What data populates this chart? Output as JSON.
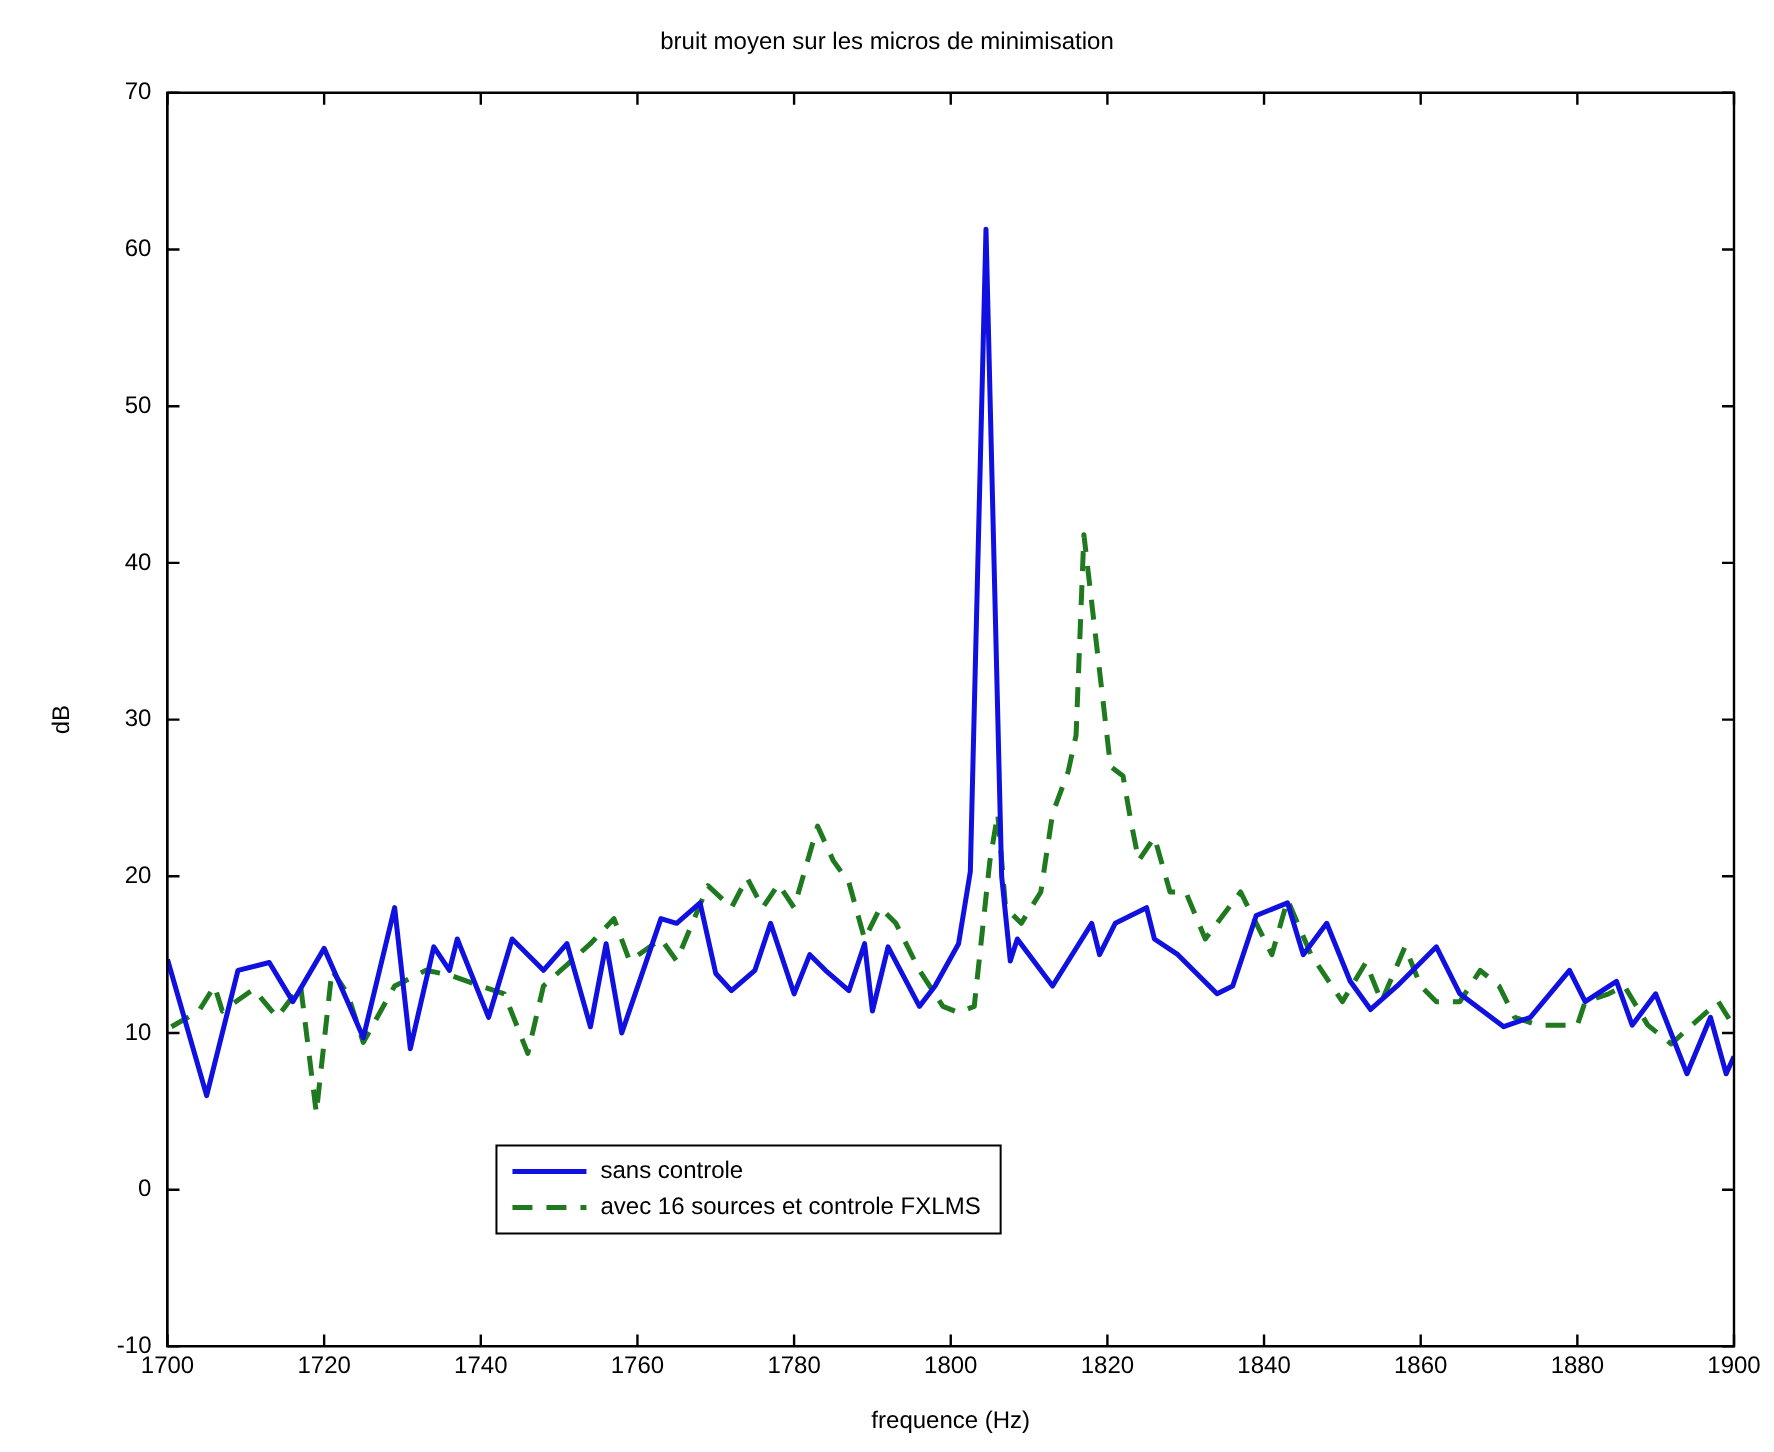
{
  "chart_data": {
    "type": "line",
    "title": "bruit moyen sur les micros de minimisation",
    "xlabel": "frequence (Hz)",
    "ylabel": "dB",
    "xlim": [
      1700,
      1900
    ],
    "xticks": [
      1700,
      1720,
      1740,
      1760,
      1780,
      1800,
      1820,
      1840,
      1860,
      1880,
      1900
    ],
    "ylim": [
      -10,
      70
    ],
    "yticks": [
      -10,
      0,
      10,
      20,
      30,
      40,
      50,
      60,
      70
    ],
    "grid": false,
    "legend": "bottom left",
    "marker": "none",
    "series": [
      {
        "name": "sans controle",
        "color": "#1010e0",
        "line_style": "solid",
        "x": [
          1700,
          1705,
          1709,
          1713,
          1716,
          1720,
          1723,
          1725,
          1729,
          1731,
          1734,
          1736,
          1737,
          1741,
          1744,
          1748,
          1751,
          1754,
          1756,
          1758,
          1763,
          1765,
          1768,
          1770,
          1772,
          1775,
          1777,
          1780,
          1782,
          1784,
          1787,
          1789,
          1790,
          1792,
          1796,
          1798,
          1801,
          1802.5,
          1804.5,
          1806.5,
          1807.6,
          1808.5,
          1813,
          1818,
          1819,
          1821,
          1825,
          1826,
          1829,
          1834,
          1836,
          1839,
          1843,
          1845,
          1848,
          1851,
          1853.6,
          1857,
          1862,
          1865,
          1870.6,
          1874,
          1879,
          1881,
          1885,
          1887,
          1890,
          1894,
          1897,
          1899,
          1900
        ],
        "values": [
          14.7,
          6,
          14,
          14.5,
          12,
          15.4,
          12,
          9.7,
          18,
          9,
          15.5,
          14,
          16,
          11,
          16,
          14,
          15.7,
          10.4,
          15.7,
          10,
          17.3,
          17,
          18.3,
          13.8,
          12.7,
          14,
          17,
          12.5,
          15,
          14,
          12.7,
          15.7,
          11.4,
          15.5,
          11.7,
          13,
          15.7,
          20.3,
          61.3,
          20,
          14.6,
          16,
          13,
          17,
          15,
          17,
          18,
          16,
          15,
          12.5,
          13,
          17.5,
          18.3,
          15,
          17,
          13.3,
          11.5,
          13,
          15.5,
          12.5,
          10.4,
          11,
          14,
          12,
          13.3,
          10.5,
          12.5,
          7.4,
          11,
          7.4,
          8.5
        ]
      },
      {
        "name": "avec 16 sources et controle FXLMS",
        "color": "#1f7a1f",
        "line_style": "dashed",
        "x": [
          1700.5,
          1704,
          1706,
          1707,
          1711,
          1714,
          1717,
          1719,
          1721,
          1723,
          1725,
          1729,
          1733,
          1736,
          1740,
          1743,
          1746,
          1748,
          1754,
          1757,
          1759,
          1763,
          1765,
          1769,
          1772,
          1774,
          1776,
          1778,
          1780,
          1783,
          1785,
          1787,
          1789,
          1791,
          1793,
          1796,
          1799,
          1801,
          1803,
          1805,
          1806,
          1807,
          1809,
          1811.5,
          1813,
          1815,
          1816,
          1817,
          1819.6,
          1820.4,
          1822,
          1823,
          1824,
          1826,
          1828,
          1830,
          1832.5,
          1837,
          1841,
          1843,
          1846,
          1850,
          1853,
          1855,
          1858,
          1860,
          1862,
          1865,
          1867.6,
          1870,
          1872,
          1875,
          1880,
          1881,
          1884,
          1886,
          1889,
          1892,
          1893.5,
          1898,
          1900
        ],
        "values": [
          10.4,
          11.4,
          13,
          11.4,
          12.8,
          11,
          13,
          4.9,
          14,
          12.5,
          9.4,
          13,
          14,
          13.7,
          13,
          12.5,
          8.7,
          13,
          15.7,
          17.3,
          14.6,
          16,
          14.6,
          19.4,
          18,
          19.9,
          18,
          19.5,
          18,
          23.2,
          21,
          19.6,
          16,
          18,
          17,
          14,
          11.7,
          11.3,
          11.7,
          21,
          24,
          18,
          17,
          19,
          24,
          26.7,
          29,
          41.8,
          30.5,
          27,
          26.4,
          23.5,
          21,
          22.5,
          19,
          19,
          16,
          19,
          15,
          18.5,
          15,
          12,
          14.5,
          12,
          15.5,
          13,
          12,
          12,
          14,
          13,
          11,
          10.5,
          10.5,
          12,
          12.5,
          13,
          10.5,
          9.3,
          10,
          12,
          10.4
        ]
      }
    ]
  }
}
